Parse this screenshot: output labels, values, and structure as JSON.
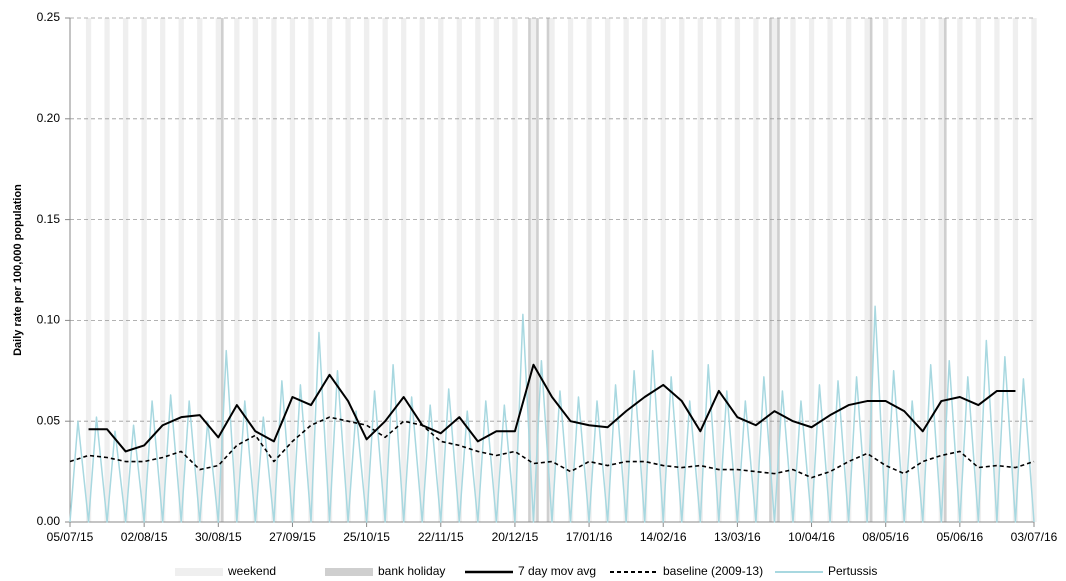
{
  "chart_data": {
    "type": "line",
    "y_label": "Daily rate per 100,000 population",
    "xlim": [
      0,
      364
    ],
    "xticks": [
      {
        "value": 0,
        "label": "05/07/15"
      },
      {
        "value": 28,
        "label": "02/08/15"
      },
      {
        "value": 56,
        "label": "30/08/15"
      },
      {
        "value": 84,
        "label": "27/09/15"
      },
      {
        "value": 112,
        "label": "25/10/15"
      },
      {
        "value": 140,
        "label": "22/11/15"
      },
      {
        "value": 168,
        "label": "20/12/15"
      },
      {
        "value": 196,
        "label": "17/01/16"
      },
      {
        "value": 224,
        "label": "14/02/16"
      },
      {
        "value": 252,
        "label": "13/03/16"
      },
      {
        "value": 280,
        "label": "10/04/16"
      },
      {
        "value": 308,
        "label": "08/05/16"
      },
      {
        "value": 336,
        "label": "05/06/16"
      },
      {
        "value": 364,
        "label": "03/07/16"
      }
    ],
    "ylim": [
      0,
      0.25
    ],
    "yticks": [
      {
        "value": 0,
        "label": "0.00"
      },
      {
        "value": 0.05,
        "label": "0.05"
      },
      {
        "value": 0.1,
        "label": "0.10"
      },
      {
        "value": 0.15,
        "label": "0.15"
      },
      {
        "value": 0.2,
        "label": "0.20"
      },
      {
        "value": 0.25,
        "label": "0.25"
      }
    ],
    "grid": true,
    "shading": [
      {
        "name": "weekend",
        "color": "#efefef",
        "width": 2,
        "x": [
          6,
          13,
          20,
          27,
          34,
          41,
          48,
          55,
          62,
          69,
          76,
          83,
          90,
          97,
          104,
          111,
          118,
          125,
          132,
          139,
          146,
          153,
          160,
          167,
          174,
          181,
          188,
          195,
          202,
          209,
          216,
          223,
          230,
          237,
          244,
          251,
          258,
          265,
          272,
          279,
          286,
          293,
          300,
          307,
          314,
          321,
          328,
          335,
          342,
          349,
          356,
          363
        ]
      },
      {
        "name": "bank holiday",
        "color": "#cfcfcf",
        "width": 1,
        "x": [
          57,
          173,
          176,
          180,
          264,
          267,
          302,
          330
        ]
      }
    ],
    "series": [
      {
        "name": "7 day mov avg",
        "color": "#000000",
        "dash": false,
        "width": 2,
        "x": [
          7,
          14,
          21,
          28,
          35,
          42,
          49,
          56,
          63,
          70,
          77,
          84,
          91,
          98,
          105,
          112,
          119,
          126,
          133,
          140,
          147,
          154,
          161,
          168,
          175,
          182,
          189,
          196,
          203,
          210,
          217,
          224,
          231,
          238,
          245,
          252,
          259,
          266,
          273,
          280,
          287,
          294,
          301,
          308,
          315,
          322,
          329,
          336,
          343,
          350,
          357
        ],
        "values": [
          0.046,
          0.046,
          0.035,
          0.038,
          0.048,
          0.052,
          0.053,
          0.042,
          0.058,
          0.045,
          0.04,
          0.062,
          0.058,
          0.073,
          0.06,
          0.041,
          0.05,
          0.062,
          0.048,
          0.044,
          0.052,
          0.04,
          0.045,
          0.045,
          0.078,
          0.062,
          0.05,
          0.048,
          0.047,
          0.055,
          0.062,
          0.068,
          0.06,
          0.045,
          0.065,
          0.052,
          0.048,
          0.055,
          0.05,
          0.047,
          0.053,
          0.058,
          0.06,
          0.06,
          0.055,
          0.045,
          0.06,
          0.062,
          0.058,
          0.065,
          0.065
        ]
      },
      {
        "name": "baseline (2009-13)",
        "color": "#000000",
        "dash": true,
        "width": 1.6,
        "x": [
          0,
          7,
          14,
          21,
          28,
          35,
          42,
          49,
          56,
          63,
          70,
          77,
          84,
          91,
          98,
          105,
          112,
          119,
          126,
          133,
          140,
          147,
          154,
          161,
          168,
          175,
          182,
          189,
          196,
          203,
          210,
          217,
          224,
          231,
          238,
          245,
          252,
          259,
          266,
          273,
          280,
          287,
          294,
          301,
          308,
          315,
          322,
          329,
          336,
          343,
          350,
          357,
          364
        ],
        "values": [
          0.03,
          0.033,
          0.032,
          0.03,
          0.03,
          0.032,
          0.035,
          0.026,
          0.028,
          0.038,
          0.043,
          0.03,
          0.04,
          0.048,
          0.052,
          0.05,
          0.048,
          0.042,
          0.05,
          0.048,
          0.04,
          0.038,
          0.035,
          0.033,
          0.035,
          0.029,
          0.03,
          0.025,
          0.03,
          0.028,
          0.03,
          0.03,
          0.028,
          0.027,
          0.028,
          0.026,
          0.026,
          0.025,
          0.024,
          0.026,
          0.022,
          0.025,
          0.03,
          0.034,
          0.028,
          0.024,
          0.03,
          0.033,
          0.035,
          0.027,
          0.028,
          0.027,
          0.03
        ]
      },
      {
        "name": "Pertussis",
        "color": "#a8d8e0",
        "dash": false,
        "width": 1.5,
        "x": [
          0,
          3,
          7,
          10,
          14,
          17,
          21,
          24,
          28,
          31,
          35,
          38,
          42,
          45,
          49,
          52,
          56,
          59,
          63,
          66,
          70,
          73,
          77,
          80,
          84,
          87,
          91,
          94,
          98,
          101,
          105,
          108,
          112,
          115,
          119,
          122,
          126,
          129,
          133,
          136,
          140,
          143,
          147,
          150,
          154,
          157,
          161,
          164,
          168,
          171,
          175,
          178,
          182,
          185,
          189,
          192,
          196,
          199,
          203,
          206,
          210,
          213,
          217,
          220,
          224,
          227,
          231,
          234,
          238,
          241,
          245,
          248,
          252,
          255,
          259,
          262,
          266,
          269,
          273,
          276,
          280,
          283,
          287,
          290,
          294,
          297,
          301,
          304,
          308,
          311,
          315,
          318,
          322,
          325,
          329,
          332,
          336,
          339,
          343,
          346,
          350,
          353,
          357,
          360,
          364
        ],
        "values": [
          0,
          0.05,
          0,
          0.052,
          0,
          0.045,
          0,
          0.048,
          0,
          0.06,
          0,
          0.063,
          0,
          0.06,
          0,
          0.05,
          0,
          0.085,
          0,
          0.06,
          0,
          0.052,
          0,
          0.07,
          0,
          0.068,
          0,
          0.094,
          0,
          0.075,
          0,
          0.055,
          0,
          0.065,
          0,
          0.078,
          0,
          0.062,
          0,
          0.058,
          0,
          0.066,
          0,
          0.055,
          0,
          0.06,
          0,
          0.058,
          0,
          0.103,
          0,
          0.08,
          0,
          0.065,
          0,
          0.062,
          0,
          0.06,
          0,
          0.068,
          0,
          0.075,
          0,
          0.085,
          0,
          0.072,
          0,
          0.06,
          0,
          0.078,
          0,
          0.065,
          0,
          0.06,
          0,
          0.072,
          0,
          0.065,
          0,
          0.06,
          0,
          0.068,
          0,
          0.07,
          0,
          0.072,
          0,
          0.107,
          0,
          0.075,
          0,
          0.06,
          0,
          0.078,
          0,
          0.08,
          0,
          0.072,
          0,
          0.09,
          0,
          0.082,
          0,
          0.071,
          0
        ]
      }
    ]
  }
}
